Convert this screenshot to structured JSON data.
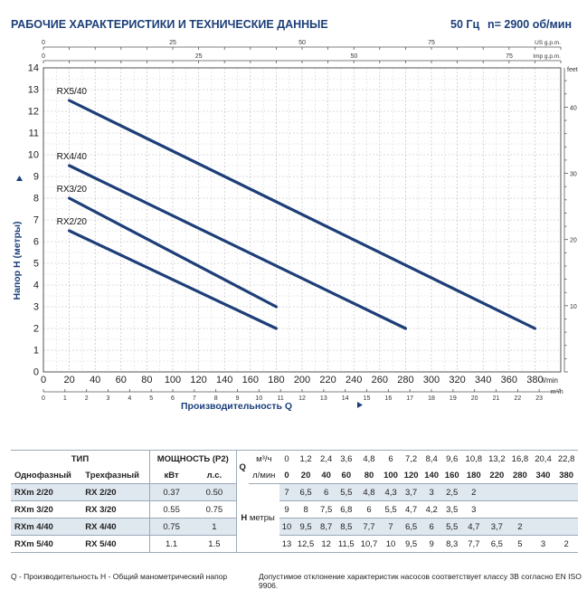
{
  "header": {
    "title": "РАБОЧИЕ ХАРАКТЕРИСТИКИ И ТЕХНИЧЕСКИЕ ДАННЫЕ",
    "freq": "50 Гц",
    "speed": "n= 2900 об/мин"
  },
  "chart_data": {
    "type": "line",
    "xlabel": "Производительность Q",
    "ylabel": "Напор H (метры)",
    "x_unit": "l/min",
    "xlim": [
      0,
      400
    ],
    "ylim": [
      0,
      14
    ],
    "x_ticks": [
      0,
      20,
      40,
      60,
      80,
      100,
      120,
      140,
      160,
      180,
      200,
      220,
      240,
      260,
      280,
      300,
      320,
      340,
      360,
      380
    ],
    "y_ticks": [
      0,
      1,
      2,
      3,
      4,
      5,
      6,
      7,
      8,
      9,
      10,
      11,
      12,
      13,
      14
    ],
    "series": [
      {
        "name": "RX5/40",
        "x": [
          20,
          380
        ],
        "y": [
          12.5,
          2
        ]
      },
      {
        "name": "RX4/40",
        "x": [
          20,
          280
        ],
        "y": [
          9.5,
          2
        ]
      },
      {
        "name": "RX3/20",
        "x": [
          20,
          180
        ],
        "y": [
          8,
          3
        ]
      },
      {
        "name": "RX2/20",
        "x": [
          20,
          180
        ],
        "y": [
          6.5,
          2
        ]
      }
    ],
    "line_color": "#1d3e78",
    "top_axes": [
      {
        "unit": "US g.p.m.",
        "max": 100,
        "labels": [
          0,
          25,
          50,
          75
        ]
      },
      {
        "unit": "Imp g.p.m.",
        "max": 83.3,
        "labels": [
          0,
          25,
          50,
          75
        ]
      }
    ],
    "m3h_axis": {
      "unit": "m³/h",
      "labels": [
        0,
        1,
        2,
        3,
        4,
        5,
        6,
        7,
        8,
        9,
        10,
        11,
        12,
        13,
        14,
        15,
        16,
        17,
        18,
        19,
        20,
        21,
        22,
        23
      ]
    },
    "feet_axis": {
      "unit": "feet",
      "labels": [
        10,
        20,
        30,
        40
      ]
    }
  },
  "table": {
    "header": {
      "type": "ТИП",
      "single_phase": "Однофазный",
      "three_phase": "Трехфазный",
      "power": "МОЩНОСТЬ (P2)",
      "kw": "кВт",
      "hp": "л.с.",
      "q": "Q",
      "m3h": "м³/ч",
      "lmin": "л/мин",
      "h": "H",
      "meters": "метры"
    },
    "q_m3h": [
      "0",
      "1,2",
      "2,4",
      "3,6",
      "4,8",
      "6",
      "7,2",
      "8,4",
      "9,6",
      "10,8",
      "13,2",
      "16,8",
      "20,4",
      "22,8"
    ],
    "q_lmin": [
      "0",
      "20",
      "40",
      "60",
      "80",
      "100",
      "120",
      "140",
      "160",
      "180",
      "220",
      "280",
      "340",
      "380"
    ],
    "rows": [
      {
        "single": "RXm 2/20",
        "three": "RX 2/20",
        "kw": "0.37",
        "hp": "0.50",
        "h": [
          "7",
          "6,5",
          "6",
          "5,5",
          "4,8",
          "4,3",
          "3,7",
          "3",
          "2,5",
          "2",
          "",
          "",
          "",
          ""
        ]
      },
      {
        "single": "RXm 3/20",
        "three": "RX 3/20",
        "kw": "0.55",
        "hp": "0.75",
        "h": [
          "9",
          "8",
          "7,5",
          "6,8",
          "6",
          "5,5",
          "4,7",
          "4,2",
          "3,5",
          "3",
          "",
          "",
          "",
          ""
        ]
      },
      {
        "single": "RXm 4/40",
        "three": "RX 4/40",
        "kw": "0.75",
        "hp": "1",
        "h": [
          "10",
          "9,5",
          "8,7",
          "8,5",
          "7,7",
          "7",
          "6,5",
          "6",
          "5,5",
          "4,7",
          "3,7",
          "2",
          "",
          ""
        ]
      },
      {
        "single": "RXm 5/40",
        "three": "RX 5/40",
        "kw": "1.1",
        "hp": "1.5",
        "h": [
          "13",
          "12,5",
          "12",
          "11,5",
          "10,7",
          "10",
          "9,5",
          "9",
          "8,3",
          "7,7",
          "6,5",
          "5",
          "3",
          "2"
        ]
      }
    ]
  },
  "footer": {
    "left": "Q - Производительность   H - Общий манометрический напор",
    "right": "Допустимое отклонение характеристик насосов соответствует классу 3B согласно EN ISO 9906."
  }
}
